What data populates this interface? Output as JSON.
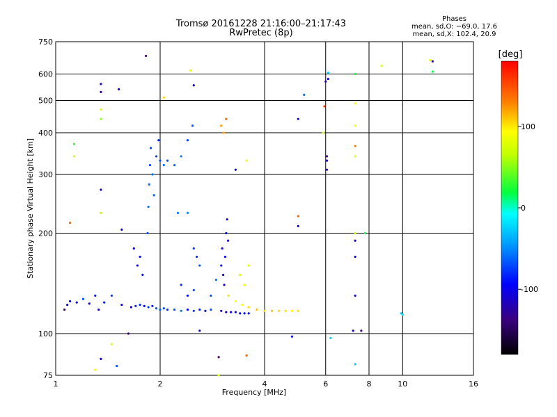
{
  "chart_data": {
    "type": "scatter",
    "title": "Tromsø 20161228 21:16:00–21:17:43",
    "subtitle": "RwPretec (8p)",
    "xlabel": "Frequency [MHz]",
    "ylabel": "Stationary phase Virtual Height [km]",
    "x_scale": "log",
    "y_scale": "log",
    "xlim": [
      1,
      16
    ],
    "ylim": [
      75,
      750
    ],
    "x_ticks": [
      1,
      2,
      4,
      6,
      8,
      10,
      16
    ],
    "x_tick_labels": [
      "1",
      "2",
      "4",
      "6",
      "8",
      "10",
      "16"
    ],
    "y_ticks": [
      75,
      100,
      200,
      300,
      400,
      500,
      600,
      750
    ],
    "y_tick_labels": [
      "75",
      "100",
      "200",
      "300",
      "400",
      "500",
      "600",
      "750"
    ],
    "grid": true,
    "stats": {
      "heading": "Phases",
      "line_o": "mean, sd,O: −69.0, 17.6",
      "line_x": "mean, sd,X: 102.4, 20.9"
    },
    "colorbar": {
      "label": "[deg]",
      "range": [
        -180,
        180
      ],
      "ticks": [
        100,
        0,
        -100
      ],
      "tick_labels": [
        "100",
        "0",
        "-100"
      ]
    },
    "series": [
      {
        "points": [
          {
            "x": 1.06,
            "y": 118,
            "c": -140
          },
          {
            "x": 1.08,
            "y": 122,
            "c": -110
          },
          {
            "x": 1.1,
            "y": 125,
            "c": -100
          },
          {
            "x": 1.15,
            "y": 124,
            "c": -105
          },
          {
            "x": 1.2,
            "y": 127,
            "c": -80
          },
          {
            "x": 1.25,
            "y": 123,
            "c": -110
          },
          {
            "x": 1.3,
            "y": 130,
            "c": -95
          },
          {
            "x": 1.33,
            "y": 118,
            "c": -120
          },
          {
            "x": 1.38,
            "y": 124,
            "c": -100
          },
          {
            "x": 1.45,
            "y": 130,
            "c": -85
          },
          {
            "x": 1.55,
            "y": 122,
            "c": -110
          },
          {
            "x": 1.65,
            "y": 120,
            "c": -100
          },
          {
            "x": 1.7,
            "y": 121,
            "c": -95
          },
          {
            "x": 1.75,
            "y": 122,
            "c": -90
          },
          {
            "x": 1.8,
            "y": 121,
            "c": -100
          },
          {
            "x": 1.85,
            "y": 120,
            "c": -85
          },
          {
            "x": 1.9,
            "y": 121,
            "c": -95
          },
          {
            "x": 1.95,
            "y": 119,
            "c": -80
          },
          {
            "x": 2.0,
            "y": 118,
            "c": -75
          },
          {
            "x": 2.05,
            "y": 119,
            "c": -80
          },
          {
            "x": 2.1,
            "y": 118,
            "c": -90
          },
          {
            "x": 2.2,
            "y": 118,
            "c": -80
          },
          {
            "x": 2.3,
            "y": 117,
            "c": -70
          },
          {
            "x": 2.4,
            "y": 118,
            "c": -100
          },
          {
            "x": 2.5,
            "y": 117,
            "c": -85
          },
          {
            "x": 2.6,
            "y": 118,
            "c": -95
          },
          {
            "x": 2.7,
            "y": 117,
            "c": -110
          },
          {
            "x": 2.8,
            "y": 118,
            "c": -80
          },
          {
            "x": 1.68,
            "y": 180,
            "c": -100
          },
          {
            "x": 1.72,
            "y": 160,
            "c": -110
          },
          {
            "x": 1.75,
            "y": 170,
            "c": -100
          },
          {
            "x": 1.78,
            "y": 150,
            "c": -95
          },
          {
            "x": 1.84,
            "y": 200,
            "c": -80
          },
          {
            "x": 1.85,
            "y": 240,
            "c": -70
          },
          {
            "x": 1.86,
            "y": 280,
            "c": -75
          },
          {
            "x": 1.87,
            "y": 320,
            "c": -85
          },
          {
            "x": 1.88,
            "y": 360,
            "c": -80
          },
          {
            "x": 1.9,
            "y": 300,
            "c": -70
          },
          {
            "x": 1.92,
            "y": 260,
            "c": -75
          },
          {
            "x": 1.95,
            "y": 340,
            "c": -85
          },
          {
            "x": 1.98,
            "y": 380,
            "c": -90
          },
          {
            "x": 2.0,
            "y": 330,
            "c": -80
          },
          {
            "x": 2.05,
            "y": 320,
            "c": -75
          },
          {
            "x": 2.1,
            "y": 330,
            "c": -80
          },
          {
            "x": 2.2,
            "y": 320,
            "c": -75
          },
          {
            "x": 2.3,
            "y": 340,
            "c": -70
          },
          {
            "x": 2.4,
            "y": 380,
            "c": -85
          },
          {
            "x": 2.48,
            "y": 420,
            "c": -80
          },
          {
            "x": 2.25,
            "y": 230,
            "c": -70
          },
          {
            "x": 2.4,
            "y": 230,
            "c": -65
          },
          {
            "x": 2.5,
            "y": 180,
            "c": -85
          },
          {
            "x": 2.55,
            "y": 170,
            "c": -90
          },
          {
            "x": 2.6,
            "y": 160,
            "c": -80
          },
          {
            "x": 2.3,
            "y": 140,
            "c": -90
          },
          {
            "x": 2.4,
            "y": 130,
            "c": -95
          },
          {
            "x": 2.5,
            "y": 135,
            "c": -80
          },
          {
            "x": 2.8,
            "y": 130,
            "c": -80
          },
          {
            "x": 2.9,
            "y": 145,
            "c": -70
          },
          {
            "x": 3.0,
            "y": 160,
            "c": -110
          },
          {
            "x": 3.02,
            "y": 180,
            "c": -120
          },
          {
            "x": 3.04,
            "y": 150,
            "c": -115
          },
          {
            "x": 3.06,
            "y": 140,
            "c": -125
          },
          {
            "x": 3.08,
            "y": 170,
            "c": -105
          },
          {
            "x": 3.1,
            "y": 200,
            "c": -100
          },
          {
            "x": 3.12,
            "y": 220,
            "c": -110
          },
          {
            "x": 3.14,
            "y": 190,
            "c": -120
          },
          {
            "x": 3.0,
            "y": 117,
            "c": -110
          },
          {
            "x": 3.1,
            "y": 116,
            "c": -115
          },
          {
            "x": 3.2,
            "y": 116,
            "c": -110
          },
          {
            "x": 3.3,
            "y": 116,
            "c": -105
          },
          {
            "x": 3.4,
            "y": 115,
            "c": -110
          },
          {
            "x": 3.5,
            "y": 115,
            "c": -100
          },
          {
            "x": 3.6,
            "y": 115,
            "c": -110
          },
          {
            "x": 3.15,
            "y": 130,
            "c": 110
          },
          {
            "x": 3.3,
            "y": 125,
            "c": 100
          },
          {
            "x": 3.45,
            "y": 122,
            "c": 95
          },
          {
            "x": 3.6,
            "y": 120,
            "c": 110
          },
          {
            "x": 3.8,
            "y": 118,
            "c": 120
          },
          {
            "x": 4.0,
            "y": 117,
            "c": 110
          },
          {
            "x": 4.2,
            "y": 117,
            "c": 120
          },
          {
            "x": 4.4,
            "y": 117,
            "c": 115
          },
          {
            "x": 4.6,
            "y": 117,
            "c": 110
          },
          {
            "x": 4.8,
            "y": 117,
            "c": 105
          },
          {
            "x": 5.0,
            "y": 117,
            "c": 110
          },
          {
            "x": 3.4,
            "y": 150,
            "c": 70
          },
          {
            "x": 3.5,
            "y": 140,
            "c": 85
          },
          {
            "x": 3.6,
            "y": 160,
            "c": 80
          },
          {
            "x": 3.0,
            "y": 420,
            "c": 130
          },
          {
            "x": 3.05,
            "y": 400,
            "c": 130
          },
          {
            "x": 3.1,
            "y": 440,
            "c": 150
          },
          {
            "x": 1.35,
            "y": 560,
            "c": -120
          },
          {
            "x": 1.35,
            "y": 530,
            "c": -130
          },
          {
            "x": 1.35,
            "y": 270,
            "c": -120
          },
          {
            "x": 1.35,
            "y": 470,
            "c": 80
          },
          {
            "x": 1.35,
            "y": 440,
            "c": 50
          },
          {
            "x": 1.35,
            "y": 230,
            "c": 60
          },
          {
            "x": 1.13,
            "y": 370,
            "c": 30
          },
          {
            "x": 1.13,
            "y": 340,
            "c": 70
          },
          {
            "x": 1.1,
            "y": 215,
            "c": 150
          },
          {
            "x": 1.52,
            "y": 540,
            "c": -110
          },
          {
            "x": 1.55,
            "y": 205,
            "c": -120
          },
          {
            "x": 1.82,
            "y": 680,
            "c": -140
          },
          {
            "x": 2.05,
            "y": 510,
            "c": 110
          },
          {
            "x": 2.45,
            "y": 615,
            "c": 80
          },
          {
            "x": 2.5,
            "y": 555,
            "c": -120
          },
          {
            "x": 3.55,
            "y": 330,
            "c": 90
          },
          {
            "x": 3.3,
            "y": 310,
            "c": -110
          },
          {
            "x": 5.0,
            "y": 225,
            "c": 150
          },
          {
            "x": 5.0,
            "y": 210,
            "c": -120
          },
          {
            "x": 5.0,
            "y": 440,
            "c": -110
          },
          {
            "x": 5.2,
            "y": 520,
            "c": -70
          },
          {
            "x": 5.9,
            "y": 400,
            "c": 80
          },
          {
            "x": 5.95,
            "y": 480,
            "c": 160
          },
          {
            "x": 6.05,
            "y": 340,
            "c": -140
          },
          {
            "x": 6.05,
            "y": 330,
            "c": -120
          },
          {
            "x": 6.05,
            "y": 310,
            "c": -130
          },
          {
            "x": 6.0,
            "y": 570,
            "c": -120
          },
          {
            "x": 6.1,
            "y": 580,
            "c": -110
          },
          {
            "x": 7.3,
            "y": 600,
            "c": 20
          },
          {
            "x": 7.3,
            "y": 490,
            "c": 100
          },
          {
            "x": 7.3,
            "y": 420,
            "c": 90
          },
          {
            "x": 7.3,
            "y": 340,
            "c": 80
          },
          {
            "x": 7.3,
            "y": 365,
            "c": 140
          },
          {
            "x": 7.3,
            "y": 200,
            "c": 70
          },
          {
            "x": 7.3,
            "y": 190,
            "c": -120
          },
          {
            "x": 7.3,
            "y": 170,
            "c": -110
          },
          {
            "x": 7.3,
            "y": 130,
            "c": -110
          },
          {
            "x": 7.2,
            "y": 102,
            "c": -120
          },
          {
            "x": 7.6,
            "y": 102,
            "c": -140
          },
          {
            "x": 7.3,
            "y": 81,
            "c": -40
          },
          {
            "x": 7.8,
            "y": 200,
            "c": 20
          },
          {
            "x": 8.7,
            "y": 635,
            "c": 80
          },
          {
            "x": 9.9,
            "y": 115,
            "c": -40
          },
          {
            "x": 10.0,
            "y": 114,
            "c": -30
          },
          {
            "x": 12.0,
            "y": 660,
            "c": 80
          },
          {
            "x": 12.2,
            "y": 655,
            "c": -130
          },
          {
            "x": 12.2,
            "y": 610,
            "c": 20
          },
          {
            "x": 1.3,
            "y": 78,
            "c": 90
          },
          {
            "x": 1.45,
            "y": 93,
            "c": 80
          },
          {
            "x": 1.35,
            "y": 84,
            "c": -110
          },
          {
            "x": 1.5,
            "y": 80,
            "c": -80
          },
          {
            "x": 1.62,
            "y": 100,
            "c": -140
          },
          {
            "x": 2.6,
            "y": 102,
            "c": -110
          },
          {
            "x": 2.95,
            "y": 85,
            "c": -140
          },
          {
            "x": 2.95,
            "y": 75,
            "c": 80
          },
          {
            "x": 3.55,
            "y": 86,
            "c": 150
          },
          {
            "x": 4.8,
            "y": 98,
            "c": -110
          },
          {
            "x": 6.2,
            "y": 97,
            "c": -40
          },
          {
            "x": 6.1,
            "y": 605,
            "c": -40
          }
        ]
      }
    ]
  }
}
